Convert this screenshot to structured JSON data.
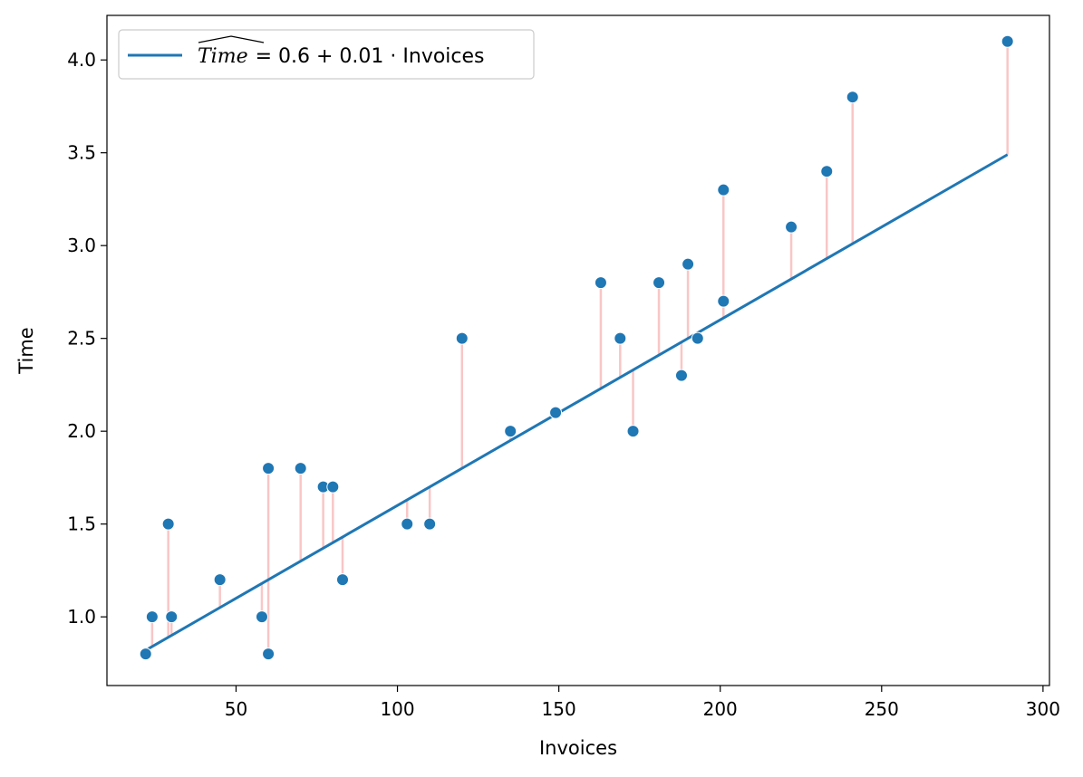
{
  "chart_data": {
    "type": "scatter",
    "title": "",
    "xlabel": "Invoices",
    "ylabel": "Time",
    "xlim": [
      10,
      302
    ],
    "ylim": [
      0.63,
      4.24
    ],
    "xticks": [
      50,
      100,
      150,
      200,
      250,
      300
    ],
    "yticks": [
      1.0,
      1.5,
      2.0,
      2.5,
      3.0,
      3.5,
      4.0
    ],
    "xtick_labels": [
      "50",
      "100",
      "150",
      "200",
      "250",
      "300"
    ],
    "ytick_labels": [
      "1.0",
      "1.5",
      "2.0",
      "2.5",
      "3.0",
      "3.5",
      "4.0"
    ],
    "grid": false,
    "legend": {
      "placement": "top-left",
      "math_term": "Time",
      "rest": "= 0.6 + 0.01 · Invoices"
    },
    "fit": {
      "intercept": 0.6,
      "slope": 0.01
    },
    "series": [
      {
        "points": [
          [
            22,
            0.8
          ],
          [
            24,
            1.0
          ],
          [
            29,
            1.5
          ],
          [
            30,
            1.0
          ],
          [
            45,
            1.2
          ],
          [
            58,
            1.0
          ],
          [
            60,
            1.8
          ],
          [
            60,
            0.8
          ],
          [
            70,
            1.8
          ],
          [
            77,
            1.7
          ],
          [
            80,
            1.7
          ],
          [
            83,
            1.2
          ],
          [
            103,
            1.5
          ],
          [
            110,
            1.5
          ],
          [
            120,
            2.5
          ],
          [
            135,
            2.0
          ],
          [
            149,
            2.1
          ],
          [
            163,
            2.8
          ],
          [
            169,
            2.5
          ],
          [
            173,
            2.0
          ],
          [
            181,
            2.8
          ],
          [
            188,
            2.3
          ],
          [
            190,
            2.9
          ],
          [
            193,
            2.5
          ],
          [
            201,
            3.3
          ],
          [
            201,
            2.7
          ],
          [
            222,
            3.1
          ],
          [
            233,
            3.4
          ],
          [
            241,
            3.8
          ],
          [
            289,
            4.1
          ]
        ]
      }
    ],
    "colors": {
      "points": "#1f77b4",
      "fit_line": "#1f77b4",
      "residuals": "#f9c6c6",
      "axes": "#000000",
      "legend_border": "#cccccc"
    }
  }
}
